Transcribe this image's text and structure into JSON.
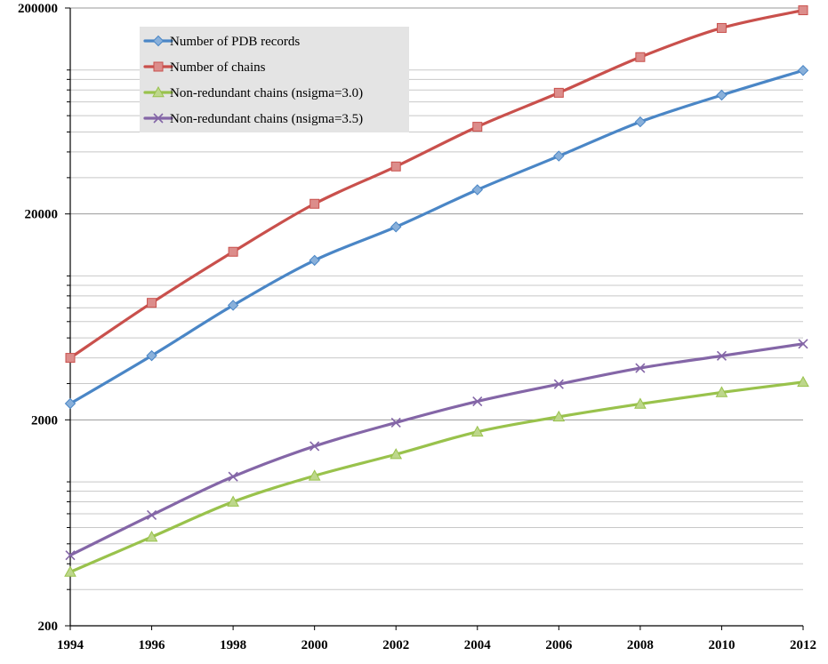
{
  "chart_data": {
    "type": "line",
    "title": "",
    "xlabel": "",
    "ylabel": "",
    "y_scale": "log",
    "ylim": [
      200,
      200000
    ],
    "xlim": [
      1994,
      2012
    ],
    "grid": "horizontal",
    "legend_position": "top-left",
    "x": [
      1994,
      1996,
      1998,
      2000,
      2002,
      2004,
      2006,
      2008,
      2010,
      2012
    ],
    "x_tick_labels": [
      "1994",
      "1996",
      "1998",
      "2000",
      "2002",
      "2004",
      "2006",
      "2008",
      "2010",
      "2012"
    ],
    "y_tick_values": [
      200,
      2000,
      20000,
      200000
    ],
    "y_tick_labels": [
      "200",
      "2000",
      "20000",
      "200000"
    ],
    "series": [
      {
        "name": "Number of PDB records",
        "color": "#4A86C6",
        "marker": "diamond",
        "values": [
          2400,
          4100,
          7200,
          11900,
          17300,
          26200,
          38200,
          56000,
          75500,
          99500
        ]
      },
      {
        "name": "Number of chains",
        "color": "#C9504C",
        "marker": "square",
        "values": [
          4000,
          7400,
          13100,
          22400,
          34000,
          53000,
          77500,
          115500,
          160000,
          195000
        ]
      },
      {
        "name": "Non-redundant chains (nsigma=3.0)",
        "color": "#99C24C",
        "marker": "triangle",
        "values": [
          365,
          540,
          800,
          1070,
          1360,
          1750,
          2070,
          2390,
          2720,
          3050
        ]
      },
      {
        "name": "Non-redundant chains (nsigma=3.5)",
        "color": "#8466A7",
        "marker": "x",
        "values": [
          440,
          690,
          1060,
          1490,
          1940,
          2460,
          2980,
          3570,
          4090,
          4680
        ]
      }
    ]
  }
}
